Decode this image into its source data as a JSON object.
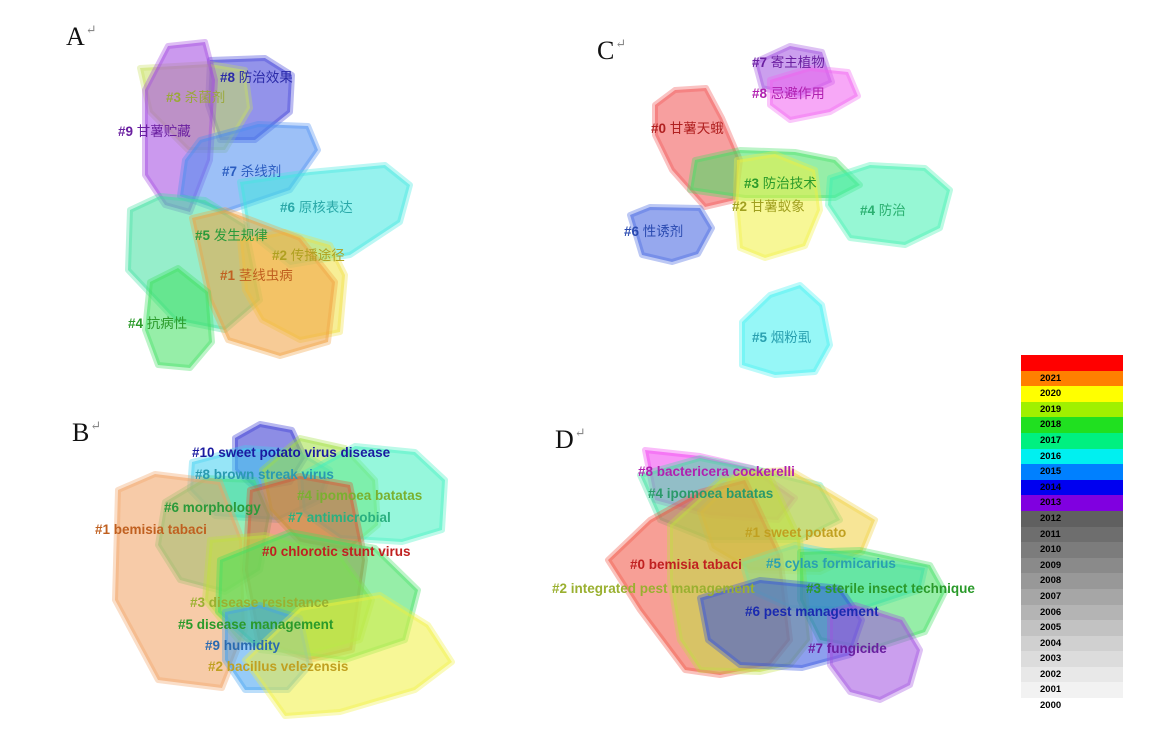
{
  "panels": [
    {
      "letter": "A",
      "clusters": [
        {
          "id": "#8",
          "label": "防治效果",
          "label_color": "#2a2aa8",
          "hull_color": "#3b3bd8"
        },
        {
          "id": "#3",
          "label": "杀菌剂",
          "label_color": "#9aa83a",
          "hull_color": "#c8e060"
        },
        {
          "id": "#9",
          "label": "甘薯贮藏",
          "label_color": "#6a1fa0",
          "hull_color": "#a045e0"
        },
        {
          "id": "#7",
          "label": "杀线剂",
          "label_color": "#2a5cc0",
          "hull_color": "#4a8cf0"
        },
        {
          "id": "#6",
          "label": "原核表达",
          "label_color": "#2aa8a8",
          "hull_color": "#40e8e0"
        },
        {
          "id": "#5",
          "label": "发生规律",
          "label_color": "#2a9a3a",
          "hull_color": "#40e0a0"
        },
        {
          "id": "#2",
          "label": "传播途径",
          "label_color": "#b0a020",
          "hull_color": "#f0e040"
        },
        {
          "id": "#1",
          "label": "茎线虫病",
          "label_color": "#c06020",
          "hull_color": "#f0a040"
        },
        {
          "id": "#4",
          "label": "抗病性",
          "label_color": "#2a9a2a",
          "hull_color": "#40e060"
        }
      ]
    },
    {
      "letter": "B",
      "clusters": [
        {
          "id": "#10",
          "label": "sweet potato virus disease",
          "label_color": "#1a1aa0",
          "hull_color": "#3030d0"
        },
        {
          "id": "#8",
          "label": "brown streak virus",
          "label_color": "#2a9ab0",
          "hull_color": "#40d0f0"
        },
        {
          "id": "#6",
          "label": "morphology",
          "label_color": "#2a9a3a",
          "hull_color": "#40e080"
        },
        {
          "id": "#4",
          "label": "ipomoea batatas",
          "label_color": "#7ab030",
          "hull_color": "#a0e040"
        },
        {
          "id": "#7",
          "label": "antimicrobial",
          "label_color": "#2ab080",
          "hull_color": "#40f0c0"
        },
        {
          "id": "#1",
          "label": "bemisia tabaci",
          "label_color": "#c06020",
          "hull_color": "#f0a060"
        },
        {
          "id": "#0",
          "label": "chlorotic stunt virus",
          "label_color": "#c02020",
          "hull_color": "#e05030"
        },
        {
          "id": "#3",
          "label": "disease resistance",
          "label_color": "#9ab030",
          "hull_color": "#c0e040"
        },
        {
          "id": "#5",
          "label": "disease management",
          "label_color": "#2a9a2a",
          "hull_color": "#40e060"
        },
        {
          "id": "#9",
          "label": "humidity",
          "label_color": "#2a6ab0",
          "hull_color": "#40a0f0"
        },
        {
          "id": "#2",
          "label": "bacillus velezensis",
          "label_color": "#c0a020",
          "hull_color": "#f0f040"
        }
      ]
    },
    {
      "letter": "C",
      "clusters": [
        {
          "id": "#7",
          "label": "寄主植物",
          "label_color": "#6a1fa0",
          "hull_color": "#a050e0"
        },
        {
          "id": "#8",
          "label": "忌避作用",
          "label_color": "#b020b0",
          "hull_color": "#f060f0"
        },
        {
          "id": "#0",
          "label": "甘薯天蛾",
          "label_color": "#b02020",
          "hull_color": "#f05050"
        },
        {
          "id": "#3",
          "label": "防治技术",
          "label_color": "#2a9a2a",
          "hull_color": "#40e060"
        },
        {
          "id": "#2",
          "label": "甘薯蚁象",
          "label_color": "#a0a020",
          "hull_color": "#f0f040"
        },
        {
          "id": "#4",
          "label": "防治",
          "label_color": "#2ab070",
          "hull_color": "#40f0b0"
        },
        {
          "id": "#6",
          "label": "性诱剂",
          "label_color": "#2a4ab0",
          "hull_color": "#4060e0"
        },
        {
          "id": "#5",
          "label": "烟粉虱",
          "label_color": "#2aa0b0",
          "hull_color": "#40f0f0"
        }
      ]
    },
    {
      "letter": "D",
      "clusters": [
        {
          "id": "#8",
          "label": "bactericera cockerelli",
          "label_color": "#b020b0",
          "hull_color": "#f040f0"
        },
        {
          "id": "#4",
          "label": "ipomoea batatas",
          "label_color": "#2a9a6a",
          "hull_color": "#40e0a0"
        },
        {
          "id": "#1",
          "label": "sweet potato",
          "label_color": "#c0a020",
          "hull_color": "#f0d040"
        },
        {
          "id": "#0",
          "label": "bemisia tabaci",
          "label_color": "#c02020",
          "hull_color": "#f05040"
        },
        {
          "id": "#5",
          "label": "cylas formicarius",
          "label_color": "#2aa0b0",
          "hull_color": "#40e0f0"
        },
        {
          "id": "#2",
          "label": "integrated pest management",
          "label_color": "#9ab030",
          "hull_color": "#c0e040"
        },
        {
          "id": "#3",
          "label": "sterile insect technique",
          "label_color": "#2a9a2a",
          "hull_color": "#40e060"
        },
        {
          "id": "#6",
          "label": "pest management",
          "label_color": "#1a2ab0",
          "hull_color": "#3050e0"
        },
        {
          "id": "#7",
          "label": "fungicide",
          "label_color": "#6a1fa0",
          "hull_color": "#a050e0"
        }
      ]
    }
  ],
  "legend": {
    "years": [
      "",
      "2021",
      "2020",
      "2019",
      "2018",
      "2017",
      "2016",
      "2015",
      "2014",
      "2013",
      "2012",
      "2011",
      "2010",
      "2009",
      "2008",
      "2007",
      "2006",
      "2005",
      "2004",
      "2003",
      "2002",
      "2001",
      "2000"
    ],
    "colors": [
      "#ff0000",
      "#ff8000",
      "#ffff00",
      "#a0f000",
      "#20e020",
      "#00f080",
      "#00f0f0",
      "#0080ff",
      "#0000f0",
      "#8000e0",
      "#606060",
      "#6e6e6e",
      "#7c7c7c",
      "#8a8a8a",
      "#989898",
      "#a6a6a6",
      "#b4b4b4",
      "#c2c2c2",
      "#d0d0d0",
      "#dcdcdc",
      "#e8e8e8",
      "#f2f2f2",
      "#ffffff"
    ]
  }
}
